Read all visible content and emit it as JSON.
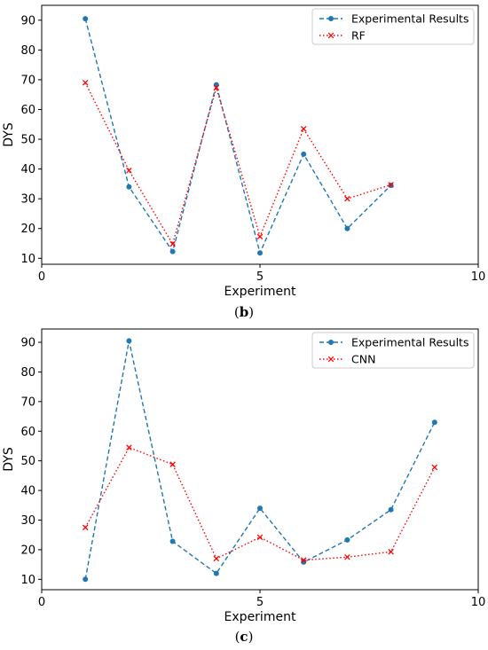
{
  "chart_data": [
    {
      "type": "line",
      "caption": "(b)",
      "xlabel": "Experiment",
      "ylabel": "DYS",
      "xlim": [
        0,
        10
      ],
      "ylim": [
        8,
        95
      ],
      "xticks": [
        0,
        5,
        10
      ],
      "yticks": [
        10,
        20,
        30,
        40,
        50,
        60,
        70,
        80,
        90
      ],
      "grid": false,
      "legend_position": "top-right",
      "series": [
        {
          "name": "Experimental Results",
          "color": "#1f77b4",
          "linestyle": "dashed",
          "marker": "circle",
          "x": [
            1,
            2,
            3,
            4,
            5,
            6,
            7,
            8
          ],
          "y": [
            90.5,
            34,
            12.3,
            68.3,
            11.8,
            45,
            20,
            34.5
          ]
        },
        {
          "name": "RF",
          "color": "#ff0000",
          "linestyle": "dotted",
          "marker": "x",
          "x": [
            1,
            2,
            3,
            4,
            5,
            6,
            7,
            8
          ],
          "y": [
            69,
            39.5,
            14.8,
            67.3,
            17.3,
            53.5,
            30,
            34.7
          ]
        }
      ]
    },
    {
      "type": "line",
      "caption": "(c)",
      "xlabel": "Experiment",
      "ylabel": "DYS",
      "xlim": [
        0,
        10
      ],
      "ylim": [
        6.5,
        94.5
      ],
      "xticks": [
        0,
        5,
        10
      ],
      "yticks": [
        10,
        20,
        30,
        40,
        50,
        60,
        70,
        80,
        90
      ],
      "grid": false,
      "legend_position": "top-right",
      "series": [
        {
          "name": "Experimental Results",
          "color": "#1f77b4",
          "linestyle": "dashed",
          "marker": "circle",
          "x": [
            1,
            2,
            3,
            4,
            5,
            6,
            7,
            8,
            9
          ],
          "y": [
            10,
            90.5,
            22.8,
            12,
            34,
            15.8,
            23.3,
            33.5,
            63
          ]
        },
        {
          "name": "CNN",
          "color": "#ff0000",
          "linestyle": "dotted",
          "marker": "x",
          "x": [
            1,
            2,
            3,
            4,
            5,
            6,
            7,
            8,
            9
          ],
          "y": [
            27.5,
            54.5,
            48.8,
            17,
            24.2,
            16.5,
            17.5,
            19.3,
            47.8
          ]
        }
      ]
    }
  ]
}
